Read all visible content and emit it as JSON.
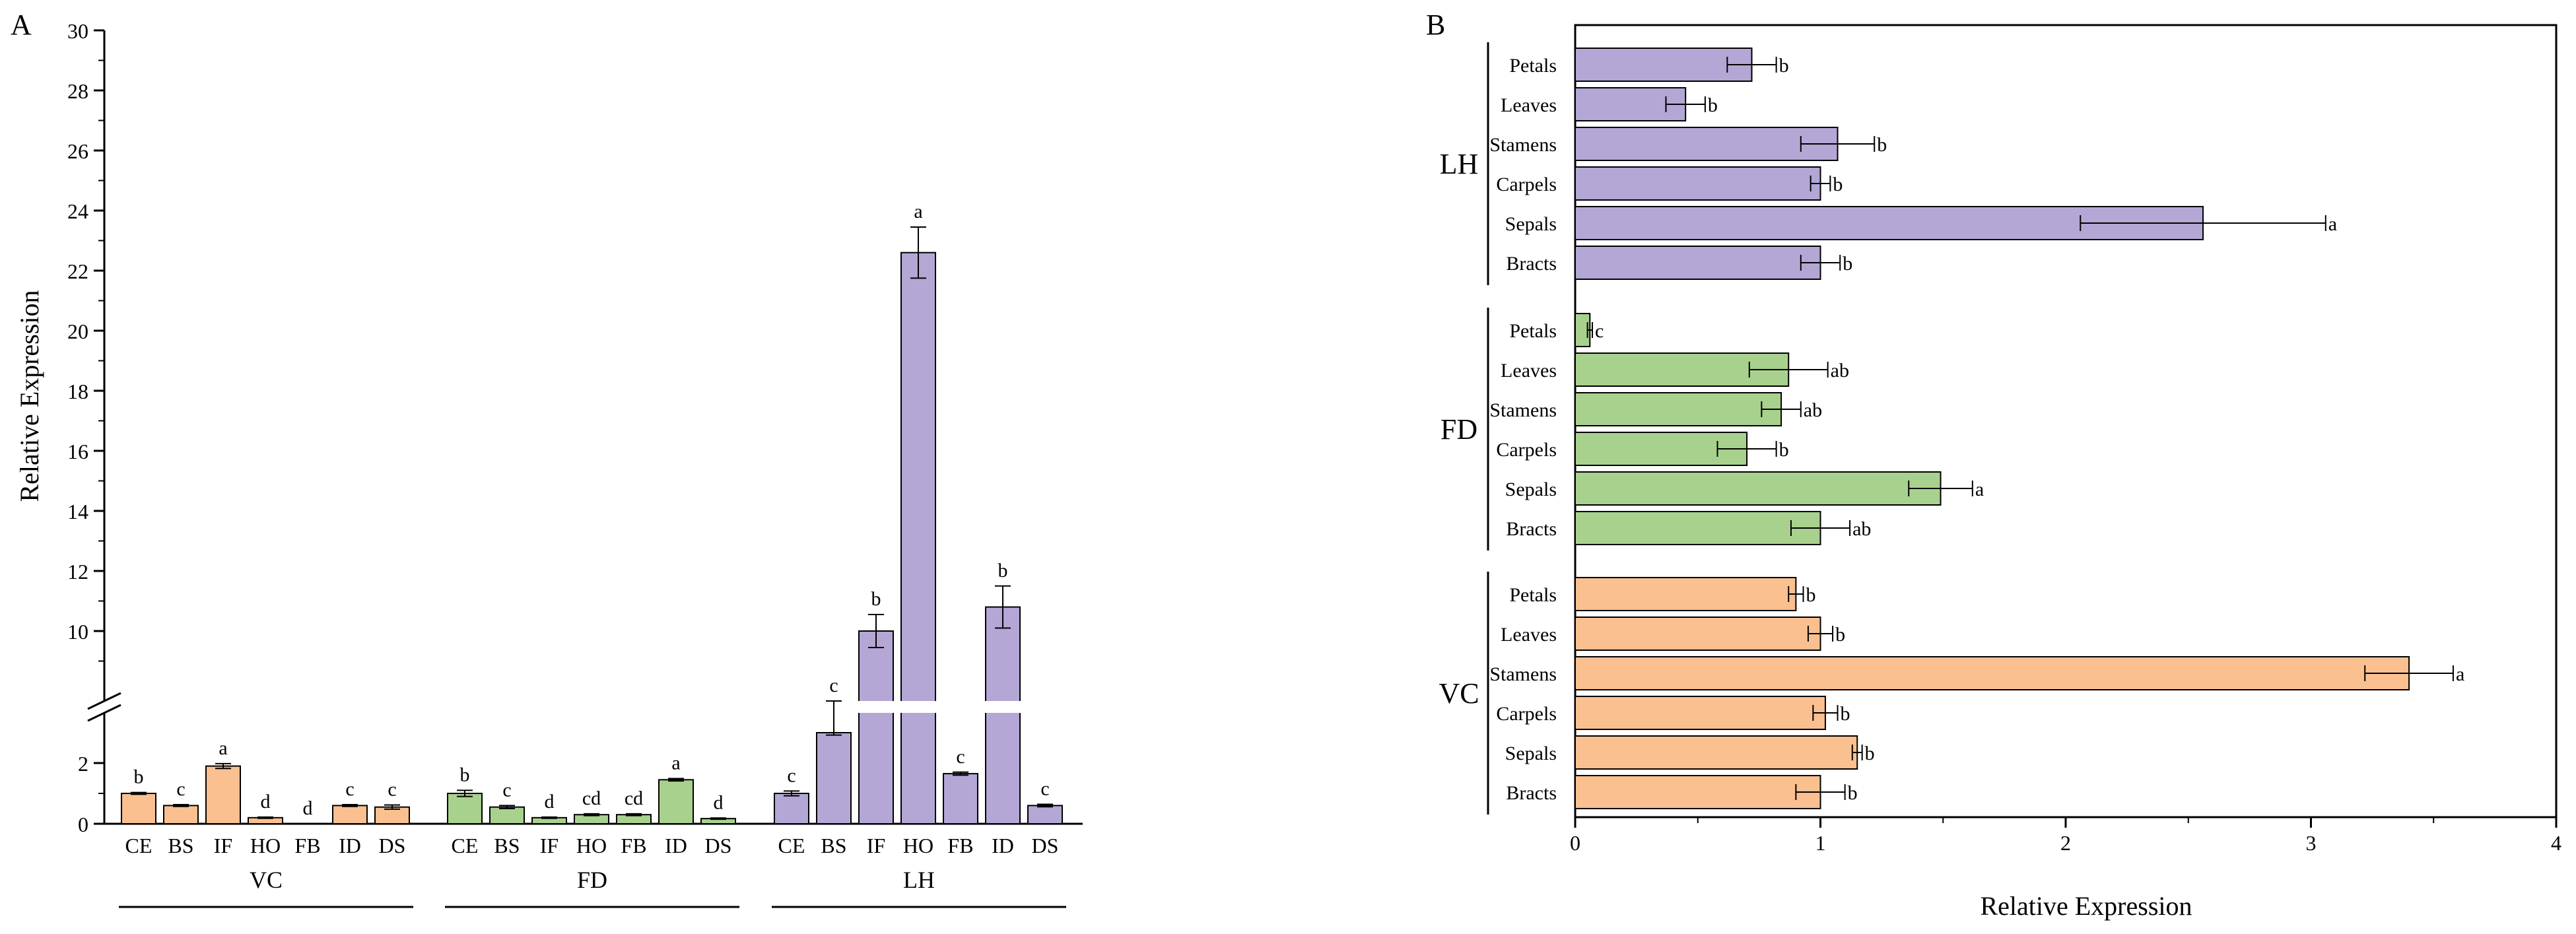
{
  "chart_data": [
    {
      "type": "bar",
      "panel_label": "A",
      "ylabel": "Relative Expression",
      "axis_break": {
        "lower_range": [
          0,
          3
        ],
        "upper_range": [
          8,
          30
        ]
      },
      "lower_ticks": [
        0,
        2
      ],
      "upper_ticks": [
        10,
        12,
        14,
        16,
        18,
        20,
        22,
        24,
        26,
        28,
        30
      ],
      "categories": [
        "CE",
        "BS",
        "IF",
        "HO",
        "FB",
        "ID",
        "DS"
      ],
      "groups": [
        {
          "name": "VC",
          "color": "#fac090",
          "values": [
            1.0,
            0.6,
            1.9,
            0.2,
            0.0,
            0.6,
            0.55
          ],
          "errors": [
            0.03,
            0.03,
            0.08,
            0.02,
            0.0,
            0.03,
            0.07
          ],
          "letters": [
            "b",
            "c",
            "a",
            "d",
            "d",
            "c",
            "c"
          ]
        },
        {
          "name": "FD",
          "color": "#a9d18e",
          "values": [
            1.0,
            0.55,
            0.2,
            0.3,
            0.3,
            1.45,
            0.17
          ],
          "errors": [
            0.1,
            0.05,
            0.02,
            0.03,
            0.03,
            0.04,
            0.02
          ],
          "letters": [
            "b",
            "c",
            "d",
            "cd",
            "cd",
            "a",
            "d"
          ]
        },
        {
          "name": "LH",
          "color": "#b4a7d6",
          "values": [
            1.0,
            3.0,
            10.0,
            22.6,
            1.65,
            10.8,
            0.6
          ],
          "errors": [
            0.08,
            0.08,
            0.55,
            0.85,
            0.05,
            0.7,
            0.04
          ],
          "letters": [
            "c",
            "c",
            "b",
            "a",
            "c",
            "b",
            "c"
          ]
        }
      ]
    },
    {
      "type": "barh",
      "panel_label": "B",
      "xlabel": "Relative Expression",
      "xlim": [
        0,
        4
      ],
      "xticks": [
        0,
        1,
        2,
        3,
        4
      ],
      "groups": [
        {
          "name": "LH",
          "color": "#b4a7d6",
          "categories": [
            "Petals",
            "Leaves",
            "Stamens",
            "Carpels",
            "Sepals",
            "Bracts"
          ],
          "values": [
            0.72,
            0.45,
            1.07,
            1.0,
            2.56,
            1.0
          ],
          "errors": [
            0.1,
            0.08,
            0.15,
            0.04,
            0.5,
            0.08
          ],
          "letters": [
            "b",
            "b",
            "b",
            "b",
            "a",
            "b"
          ]
        },
        {
          "name": "FD",
          "color": "#a9d18e",
          "categories": [
            "Petals",
            "Leaves",
            "Stamens",
            "Carpels",
            "Sepals",
            "Bracts"
          ],
          "values": [
            0.06,
            0.87,
            0.84,
            0.7,
            1.49,
            1.0
          ],
          "errors": [
            0.01,
            0.16,
            0.08,
            0.12,
            0.13,
            0.12
          ],
          "letters": [
            "c",
            "ab",
            "ab",
            "b",
            "a",
            "ab"
          ]
        },
        {
          "name": "VC",
          "color": "#fac090",
          "categories": [
            "Petals",
            "Leaves",
            "Stamens",
            "Carpels",
            "Sepals",
            "Bracts"
          ],
          "values": [
            0.9,
            1.0,
            3.4,
            1.02,
            1.15,
            1.0
          ],
          "errors": [
            0.03,
            0.05,
            0.18,
            0.05,
            0.02,
            0.1
          ],
          "letters": [
            "b",
            "b",
            "a",
            "b",
            "b",
            "b"
          ]
        }
      ]
    }
  ]
}
